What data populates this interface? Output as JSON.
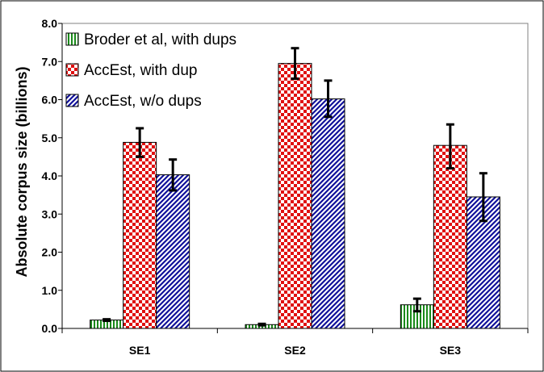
{
  "chart_data": {
    "type": "bar",
    "categories": [
      "SE1",
      "SE2",
      "SE3"
    ],
    "series": [
      {
        "name": "Broder et al, with dups",
        "values": [
          0.22,
          0.1,
          0.62
        ],
        "error_low": [
          0.2,
          0.08,
          0.45
        ],
        "error_high": [
          0.24,
          0.12,
          0.78
        ],
        "pattern": "vertical-stripes",
        "color": "#1a8a1a"
      },
      {
        "name": "AccEst, with dup",
        "values": [
          4.88,
          6.95,
          4.8
        ],
        "error_low": [
          4.5,
          6.55,
          4.2
        ],
        "error_high": [
          5.25,
          7.35,
          5.35
        ],
        "pattern": "checker",
        "color": "#e01010"
      },
      {
        "name": "AccEst, w/o dups",
        "values": [
          4.03,
          6.02,
          3.45
        ],
        "error_low": [
          3.62,
          5.55,
          2.82
        ],
        "error_high": [
          4.43,
          6.5,
          4.07
        ],
        "pattern": "diagonal-stripes",
        "color": "#10109a"
      }
    ],
    "ylabel": "Absolute corpus size (billions)",
    "xlabel": "",
    "ylim": [
      0,
      8
    ],
    "yticks": [
      "0.0",
      "1.0",
      "2.0",
      "3.0",
      "4.0",
      "5.0",
      "6.0",
      "7.0",
      "8.0"
    ],
    "legend_position": "top-left",
    "grid": false
  }
}
